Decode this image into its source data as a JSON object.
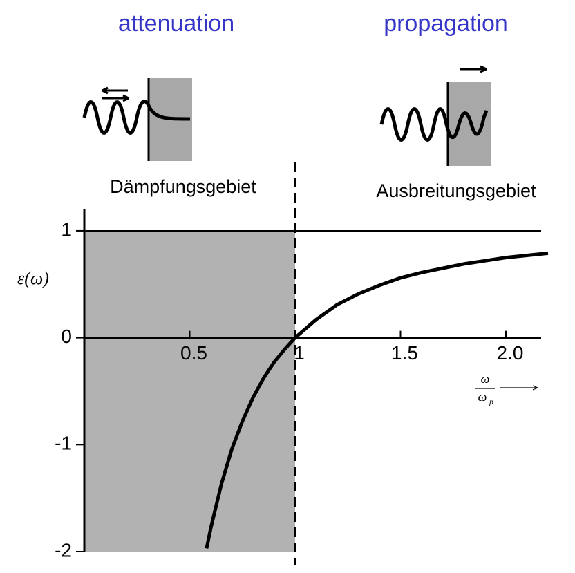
{
  "chart_data": {
    "type": "line",
    "annotations": {
      "left_title": "attenuation",
      "right_title": "propagation",
      "left_region": "Dämpfungsgebiet",
      "right_region": "Ausbreitungsgebiet"
    },
    "title_color": "#3535c8",
    "y_label": "ε(ω)",
    "x_label_numerator": "ω",
    "x_label_denominator": "ω",
    "x_label_subscript": "p",
    "x": [
      0.58,
      0.6,
      0.65,
      0.7,
      0.75,
      0.8,
      0.85,
      0.9,
      0.95,
      1,
      1.1,
      1.2,
      1.3,
      1.4,
      1.5,
      1.6,
      1.7,
      1.8,
      1.9,
      2.0,
      2.1,
      2.2
    ],
    "values": [
      -1.97,
      -1.78,
      -1.37,
      -1.04,
      -0.78,
      -0.56,
      -0.38,
      -0.23,
      -0.11,
      0,
      0.17,
      0.31,
      0.41,
      0.49,
      0.56,
      0.61,
      0.65,
      0.69,
      0.72,
      0.75,
      0.77,
      0.79
    ],
    "color": "#000000",
    "hline": 1,
    "vline": 1,
    "shaded_x": [
      0,
      1
    ],
    "shade_color": "#b2b2b2",
    "xlim": [
      0,
      2.2
    ],
    "ylim": [
      -2,
      1.2
    ],
    "xticks": [
      0.5,
      1,
      1.5,
      {
        "value": 2,
        "label": "2.0"
      }
    ],
    "yticks": [
      -2,
      -1,
      0,
      1
    ]
  }
}
